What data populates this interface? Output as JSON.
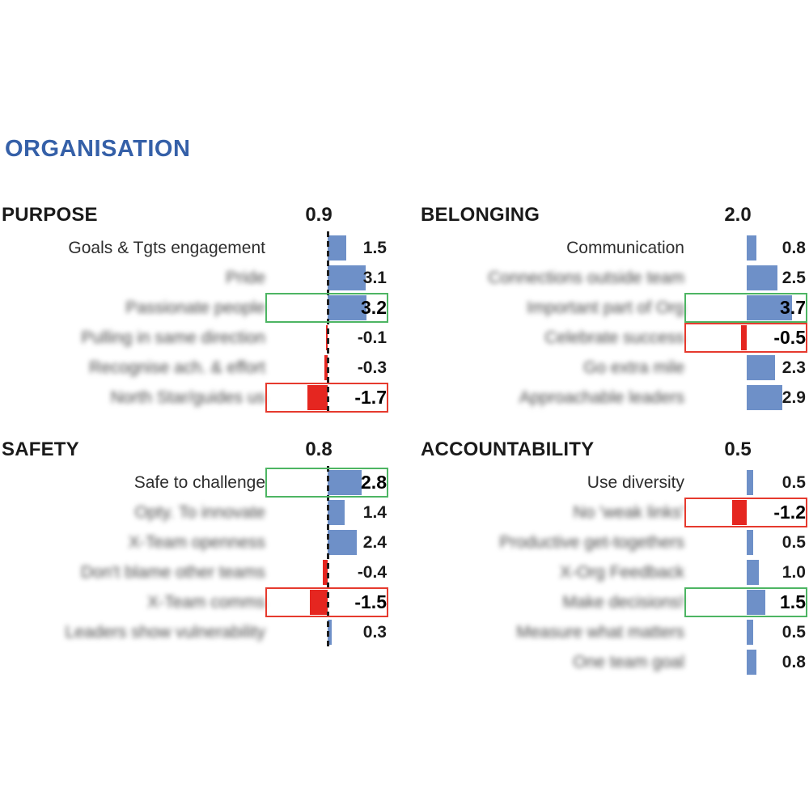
{
  "page_title": "ORGANISATION",
  "colors": {
    "title_blue": "#3560A8",
    "bar_positive": "#6E90C8",
    "bar_negative": "#E52620",
    "highlight_good_border": "#4DB563",
    "highlight_bad_border": "#E63A2E",
    "zero_line": "#1f1f1f"
  },
  "chart_data": [
    {
      "type": "bar",
      "orientation": "horizontal",
      "title": "PURPOSE",
      "score": "0.9",
      "zero_line": true,
      "position": "top-left",
      "categories": [
        "Goals & Tgts engagement",
        "Pride",
        "Passionate people",
        "Pulling in same direction",
        "Recognise ach. & effort",
        "North Star/guides us"
      ],
      "values": [
        1.5,
        3.1,
        3.2,
        -0.1,
        -0.3,
        -1.7
      ],
      "items": [
        {
          "label": "Goals & Tgts engagement",
          "value": 1.5,
          "blurred": false,
          "highlight": null
        },
        {
          "label": "Pride",
          "value": 3.1,
          "blurred": true,
          "highlight": null
        },
        {
          "label": "Passionate people",
          "value": 3.2,
          "blurred": true,
          "highlight": "good"
        },
        {
          "label": "Pulling in same direction",
          "value": -0.1,
          "blurred": true,
          "highlight": null
        },
        {
          "label": "Recognise ach. & effort",
          "value": -0.3,
          "blurred": true,
          "highlight": null
        },
        {
          "label": "North Star/guides us",
          "value": -1.7,
          "blurred": true,
          "highlight": "bad"
        }
      ]
    },
    {
      "type": "bar",
      "orientation": "horizontal",
      "title": "BELONGING",
      "score": "2.0",
      "zero_line": false,
      "position": "top-right",
      "categories": [
        "Communication",
        "Connections outside team",
        "Important part of Org",
        "Celebrate success",
        "Go extra mile",
        "Approachable leaders"
      ],
      "values": [
        0.8,
        2.5,
        3.7,
        -0.5,
        2.3,
        2.9
      ],
      "items": [
        {
          "label": "Communication",
          "value": 0.8,
          "blurred": false,
          "highlight": null
        },
        {
          "label": "Connections outside team",
          "value": 2.5,
          "blurred": true,
          "highlight": null
        },
        {
          "label": "Important part of Org",
          "value": 3.7,
          "blurred": true,
          "highlight": "good"
        },
        {
          "label": "Celebrate success",
          "value": -0.5,
          "blurred": true,
          "highlight": "bad"
        },
        {
          "label": "Go extra mile",
          "value": 2.3,
          "blurred": true,
          "highlight": null
        },
        {
          "label": "Approachable leaders",
          "value": 2.9,
          "blurred": true,
          "highlight": null
        }
      ]
    },
    {
      "type": "bar",
      "orientation": "horizontal",
      "title": "SAFETY",
      "score": "0.8",
      "zero_line": true,
      "position": "bottom-left",
      "categories": [
        "Safe to challenge",
        "Opty. To innovate",
        "X-Team openness",
        "Don't blame other teams",
        "X-Team comms",
        "Leaders show vulnerability"
      ],
      "values": [
        2.8,
        1.4,
        2.4,
        -0.4,
        -1.5,
        0.3
      ],
      "items": [
        {
          "label": "Safe to challenge",
          "value": 2.8,
          "blurred": false,
          "highlight": "good"
        },
        {
          "label": "Opty. To innovate",
          "value": 1.4,
          "blurred": true,
          "highlight": null
        },
        {
          "label": "X-Team openness",
          "value": 2.4,
          "blurred": true,
          "highlight": null
        },
        {
          "label": "Don't blame other teams",
          "value": -0.4,
          "blurred": true,
          "highlight": null
        },
        {
          "label": "X-Team comms",
          "value": -1.5,
          "blurred": true,
          "highlight": "bad"
        },
        {
          "label": "Leaders show vulnerability",
          "value": 0.3,
          "blurred": true,
          "highlight": null
        }
      ]
    },
    {
      "type": "bar",
      "orientation": "horizontal",
      "title": "ACCOUNTABILITY",
      "score": "0.5",
      "zero_line": false,
      "position": "bottom-right",
      "categories": [
        "Use diversity",
        "No 'weak links'",
        "Productive get-togethers",
        "X-Org Feedback",
        "Make decisions!",
        "Measure what matters",
        "One team goal"
      ],
      "values": [
        0.5,
        -1.2,
        0.5,
        1.0,
        1.5,
        0.5,
        0.8
      ],
      "items": [
        {
          "label": "Use diversity",
          "value": 0.5,
          "blurred": false,
          "highlight": null
        },
        {
          "label": "No 'weak links'",
          "value": -1.2,
          "blurred": true,
          "highlight": "bad"
        },
        {
          "label": "Productive get-togethers",
          "value": 0.5,
          "blurred": true,
          "highlight": null
        },
        {
          "label": "X-Org Feedback",
          "value": 1.0,
          "blurred": true,
          "highlight": null
        },
        {
          "label": "Make decisions!",
          "value": 1.5,
          "blurred": true,
          "highlight": "good"
        },
        {
          "label": "Measure what matters",
          "value": 0.5,
          "blurred": true,
          "highlight": null
        },
        {
          "label": "One team goal",
          "value": 0.8,
          "blurred": true,
          "highlight": null
        }
      ]
    }
  ]
}
